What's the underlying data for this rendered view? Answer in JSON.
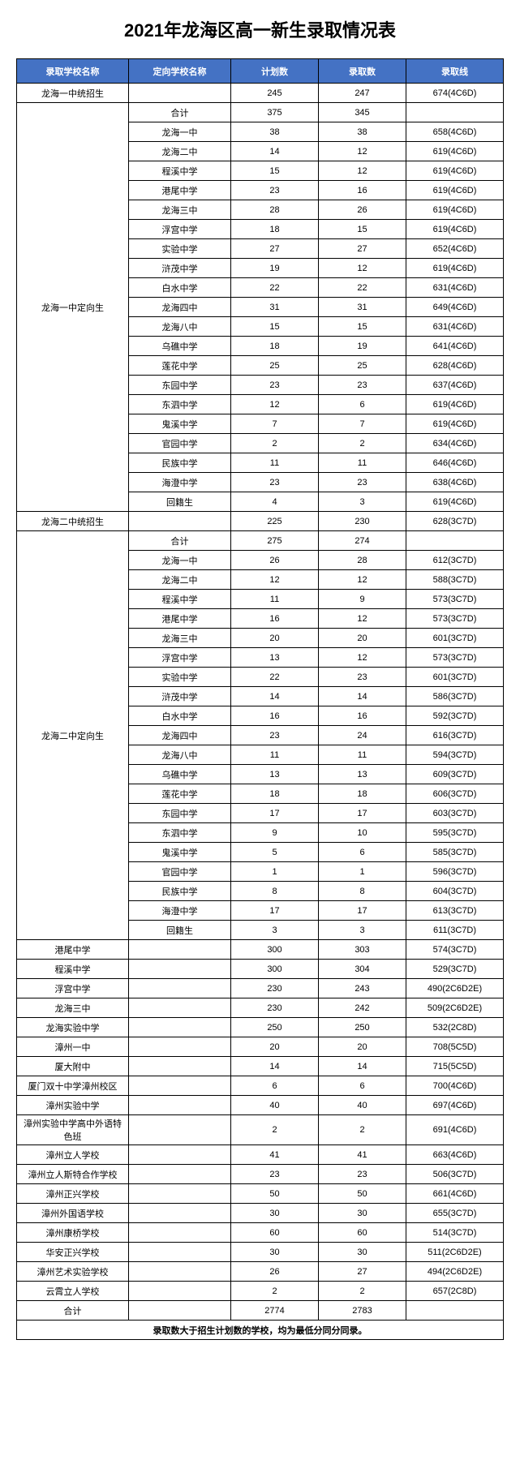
{
  "title": "2021年龙海区高一新生录取情况表",
  "columns": [
    "录取学校名称",
    "定向学校名称",
    "计划数",
    "录取数",
    "录取线"
  ],
  "colors": {
    "header_bg": "#4472c4",
    "header_fg": "#ffffff",
    "border": "#000000",
    "background": "#ffffff"
  },
  "groups": [
    {
      "name": "龙海一中统招生",
      "rows": [
        [
          "",
          "245",
          "247",
          "674(4C6D)"
        ]
      ]
    },
    {
      "name": "龙海一中定向生",
      "rows": [
        [
          "合计",
          "375",
          "345",
          ""
        ],
        [
          "龙海一中",
          "38",
          "38",
          "658(4C6D)"
        ],
        [
          "龙海二中",
          "14",
          "12",
          "619(4C6D)"
        ],
        [
          "程溪中学",
          "15",
          "12",
          "619(4C6D)"
        ],
        [
          "港尾中学",
          "23",
          "16",
          "619(4C6D)"
        ],
        [
          "龙海三中",
          "28",
          "26",
          "619(4C6D)"
        ],
        [
          "浮宫中学",
          "18",
          "15",
          "619(4C6D)"
        ],
        [
          "实验中学",
          "27",
          "27",
          "652(4C6D)"
        ],
        [
          "浒茂中学",
          "19",
          "12",
          "619(4C6D)"
        ],
        [
          "白水中学",
          "22",
          "22",
          "631(4C6D)"
        ],
        [
          "龙海四中",
          "31",
          "31",
          "649(4C6D)"
        ],
        [
          "龙海八中",
          "15",
          "15",
          "631(4C6D)"
        ],
        [
          "乌礁中学",
          "18",
          "19",
          "641(4C6D)"
        ],
        [
          "莲花中学",
          "25",
          "25",
          "628(4C6D)"
        ],
        [
          "东园中学",
          "23",
          "23",
          "637(4C6D)"
        ],
        [
          "东泗中学",
          "12",
          "6",
          "619(4C6D)"
        ],
        [
          "鬼溪中学",
          "7",
          "7",
          "619(4C6D)"
        ],
        [
          "官园中学",
          "2",
          "2",
          "634(4C6D)"
        ],
        [
          "民族中学",
          "11",
          "11",
          "646(4C6D)"
        ],
        [
          "海澄中学",
          "23",
          "23",
          "638(4C6D)"
        ],
        [
          "回籍生",
          "4",
          "3",
          "619(4C6D)"
        ]
      ]
    },
    {
      "name": "龙海二中统招生",
      "rows": [
        [
          "",
          "225",
          "230",
          "628(3C7D)"
        ]
      ]
    },
    {
      "name": "龙海二中定向生",
      "rows": [
        [
          "合计",
          "275",
          "274",
          ""
        ],
        [
          "龙海一中",
          "26",
          "28",
          "612(3C7D)"
        ],
        [
          "龙海二中",
          "12",
          "12",
          "588(3C7D)"
        ],
        [
          "程溪中学",
          "11",
          "9",
          "573(3C7D)"
        ],
        [
          "港尾中学",
          "16",
          "12",
          "573(3C7D)"
        ],
        [
          "龙海三中",
          "20",
          "20",
          "601(3C7D)"
        ],
        [
          "浮宫中学",
          "13",
          "12",
          "573(3C7D)"
        ],
        [
          "实验中学",
          "22",
          "23",
          "601(3C7D)"
        ],
        [
          "浒茂中学",
          "14",
          "14",
          "586(3C7D)"
        ],
        [
          "白水中学",
          "16",
          "16",
          "592(3C7D)"
        ],
        [
          "龙海四中",
          "23",
          "24",
          "616(3C7D)"
        ],
        [
          "龙海八中",
          "11",
          "11",
          "594(3C7D)"
        ],
        [
          "乌礁中学",
          "13",
          "13",
          "609(3C7D)"
        ],
        [
          "莲花中学",
          "18",
          "18",
          "606(3C7D)"
        ],
        [
          "东园中学",
          "17",
          "17",
          "603(3C7D)"
        ],
        [
          "东泗中学",
          "9",
          "10",
          "595(3C7D)"
        ],
        [
          "鬼溪中学",
          "5",
          "6",
          "585(3C7D)"
        ],
        [
          "官园中学",
          "1",
          "1",
          "596(3C7D)"
        ],
        [
          "民族中学",
          "8",
          "8",
          "604(3C7D)"
        ],
        [
          "海澄中学",
          "17",
          "17",
          "613(3C7D)"
        ],
        [
          "回籍生",
          "3",
          "3",
          "611(3C7D)"
        ]
      ]
    },
    {
      "name": "港尾中学",
      "rows": [
        [
          "",
          "300",
          "303",
          "574(3C7D)"
        ]
      ]
    },
    {
      "name": "程溪中学",
      "rows": [
        [
          "",
          "300",
          "304",
          "529(3C7D)"
        ]
      ]
    },
    {
      "name": "浮宫中学",
      "rows": [
        [
          "",
          "230",
          "243",
          "490(2C6D2E)"
        ]
      ]
    },
    {
      "name": "龙海三中",
      "rows": [
        [
          "",
          "230",
          "242",
          "509(2C6D2E)"
        ]
      ]
    },
    {
      "name": "龙海实验中学",
      "rows": [
        [
          "",
          "250",
          "250",
          "532(2C8D)"
        ]
      ]
    },
    {
      "name": "漳州一中",
      "rows": [
        [
          "",
          "20",
          "20",
          "708(5C5D)"
        ]
      ]
    },
    {
      "name": "厦大附中",
      "rows": [
        [
          "",
          "14",
          "14",
          "715(5C5D)"
        ]
      ]
    },
    {
      "name": "厦门双十中学漳州校区",
      "rows": [
        [
          "",
          "6",
          "6",
          "700(4C6D)"
        ]
      ]
    },
    {
      "name": "漳州实验中学",
      "rows": [
        [
          "",
          "40",
          "40",
          "697(4C6D)"
        ]
      ]
    },
    {
      "name": "漳州实验中学高中外语特色班",
      "rows": [
        [
          "",
          "2",
          "2",
          "691(4C6D)"
        ]
      ]
    },
    {
      "name": "漳州立人学校",
      "rows": [
        [
          "",
          "41",
          "41",
          "663(4C6D)"
        ]
      ]
    },
    {
      "name": "漳州立人斯特合作学校",
      "rows": [
        [
          "",
          "23",
          "23",
          "506(3C7D)"
        ]
      ]
    },
    {
      "name": "漳州正兴学校",
      "rows": [
        [
          "",
          "50",
          "50",
          "661(4C6D)"
        ]
      ]
    },
    {
      "name": "漳州外国语学校",
      "rows": [
        [
          "",
          "30",
          "30",
          "655(3C7D)"
        ]
      ]
    },
    {
      "name": "漳州康桥学校",
      "rows": [
        [
          "",
          "60",
          "60",
          "514(3C7D)"
        ]
      ]
    },
    {
      "name": "华安正兴学校",
      "rows": [
        [
          "",
          "30",
          "30",
          "511(2C6D2E)"
        ]
      ]
    },
    {
      "name": "漳州艺术实验学校",
      "rows": [
        [
          "",
          "26",
          "27",
          "494(2C6D2E)"
        ]
      ]
    },
    {
      "name": "云霄立人学校",
      "rows": [
        [
          "",
          "2",
          "2",
          "657(2C8D)"
        ]
      ]
    },
    {
      "name": "合计",
      "rows": [
        [
          "",
          "2774",
          "2783",
          ""
        ]
      ]
    }
  ],
  "footnote": "录取数大于招生计划数的学校，均为最低分同分同录。"
}
